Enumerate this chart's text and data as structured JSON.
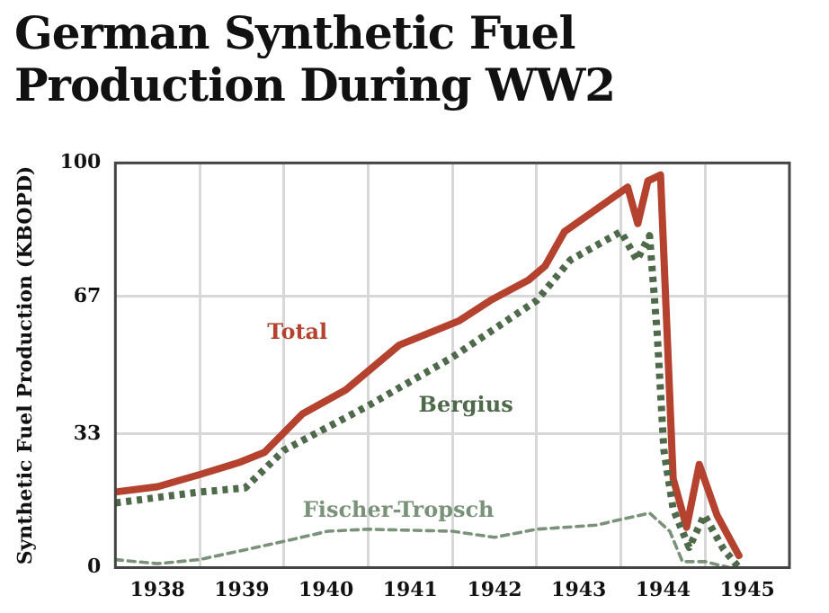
{
  "chart_data": {
    "type": "line",
    "title": "German Synthetic Fuel Production During WW2",
    "ylabel": "Synthetic Fuel Production (KBOPD)",
    "xlim": [
      1938,
      1946
    ],
    "xticks": [
      {
        "value": 1938.5,
        "label": "1938"
      },
      {
        "value": 1939,
        "label": null
      },
      {
        "value": 1939.5,
        "label": "1939"
      },
      {
        "value": 1940,
        "label": null
      },
      {
        "value": 1940.5,
        "label": "1940"
      },
      {
        "value": 1941,
        "label": null
      },
      {
        "value": 1941.5,
        "label": "1941"
      },
      {
        "value": 1942,
        "label": null
      },
      {
        "value": 1942.5,
        "label": "1942"
      },
      {
        "value": 1943,
        "label": null
      },
      {
        "value": 1943.5,
        "label": "1943"
      },
      {
        "value": 1944,
        "label": null
      },
      {
        "value": 1944.5,
        "label": "1944"
      },
      {
        "value": 1945,
        "label": null
      },
      {
        "value": 1945.5,
        "label": "1945"
      }
    ],
    "ylim": [
      0,
      100
    ],
    "yticks": [
      0,
      33,
      67,
      100
    ],
    "grid": true,
    "legend": false,
    "marker": "none",
    "series": [
      {
        "name": "Total",
        "color": "#b5412f",
        "line_style": "solid",
        "x": [
          1938,
          1938.5,
          1939,
          1939.47,
          1939.77,
          1940.22,
          1940.74,
          1941.37,
          1942.08,
          1942.45,
          1942.9,
          1943.1,
          1943.33,
          1944.08,
          1944.2,
          1944.32,
          1944.47,
          1944.62,
          1944.78,
          1944.93,
          1945.14,
          1945.4
        ],
        "values": [
          18.7,
          20,
          23,
          26,
          28.5,
          38,
          44,
          55,
          61,
          66,
          71,
          74.5,
          83,
          94,
          85,
          95.5,
          97,
          22,
          10,
          25.5,
          13,
          3
        ]
      },
      {
        "name": "Bergius",
        "color": "#4e6a4a",
        "line_style": "dotted",
        "x": [
          1938,
          1939,
          1939.54,
          1940,
          1941,
          1942,
          1943,
          1943.4,
          1944,
          1944.19,
          1944.34,
          1944.43,
          1944.51,
          1944.62,
          1944.81,
          1944.99,
          1945.22,
          1945.4
        ],
        "values": [
          16,
          18.7,
          19.7,
          29,
          40,
          52,
          66,
          76,
          83,
          76,
          82,
          58,
          29,
          14.5,
          5,
          13,
          4.5,
          0
        ]
      },
      {
        "name": "Fischer-Tropsch",
        "color": "#7b927a",
        "line_style": "dashed",
        "x": [
          1938,
          1938.5,
          1939,
          1940,
          1940.52,
          1941,
          1942,
          1942.5,
          1943,
          1943.7,
          1944.34,
          1944.58,
          1944.73,
          1945,
          1945.29
        ],
        "values": [
          2,
          1,
          2,
          6.5,
          9,
          9.5,
          9,
          7.5,
          9.5,
          10.5,
          13.5,
          9,
          1.5,
          1.5,
          0
        ]
      }
    ]
  }
}
